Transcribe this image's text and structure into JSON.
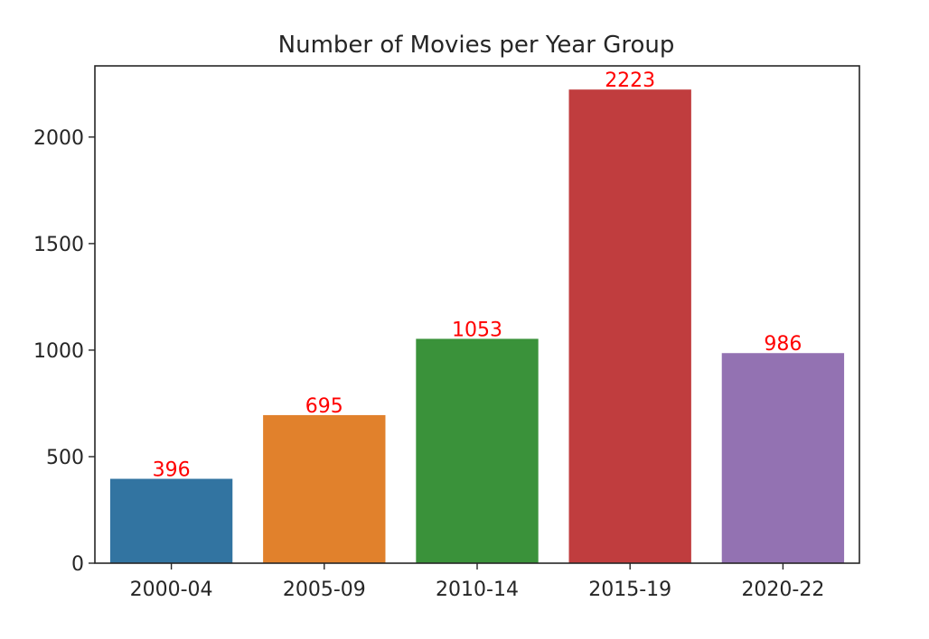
{
  "chart_data": {
    "type": "bar",
    "title": "Number of Movies per Year Group",
    "xlabel": "",
    "ylabel": "",
    "categories": [
      "2000-04",
      "2005-09",
      "2010-14",
      "2015-19",
      "2020-22"
    ],
    "values": [
      396,
      695,
      1053,
      2223,
      986
    ],
    "value_labels": [
      "396",
      "695",
      "1053",
      "2223",
      "986"
    ],
    "colors": [
      "#3274a1",
      "#e1812c",
      "#3a923a",
      "#c03d3e",
      "#9372b2"
    ],
    "label_color": "#ff0000",
    "ylim": [
      0,
      2334
    ],
    "yticks": [
      0,
      500,
      1000,
      1500,
      2000
    ],
    "ytick_labels": [
      "0",
      "500",
      "1000",
      "1500",
      "2000"
    ],
    "grid": false,
    "legend": "none"
  }
}
